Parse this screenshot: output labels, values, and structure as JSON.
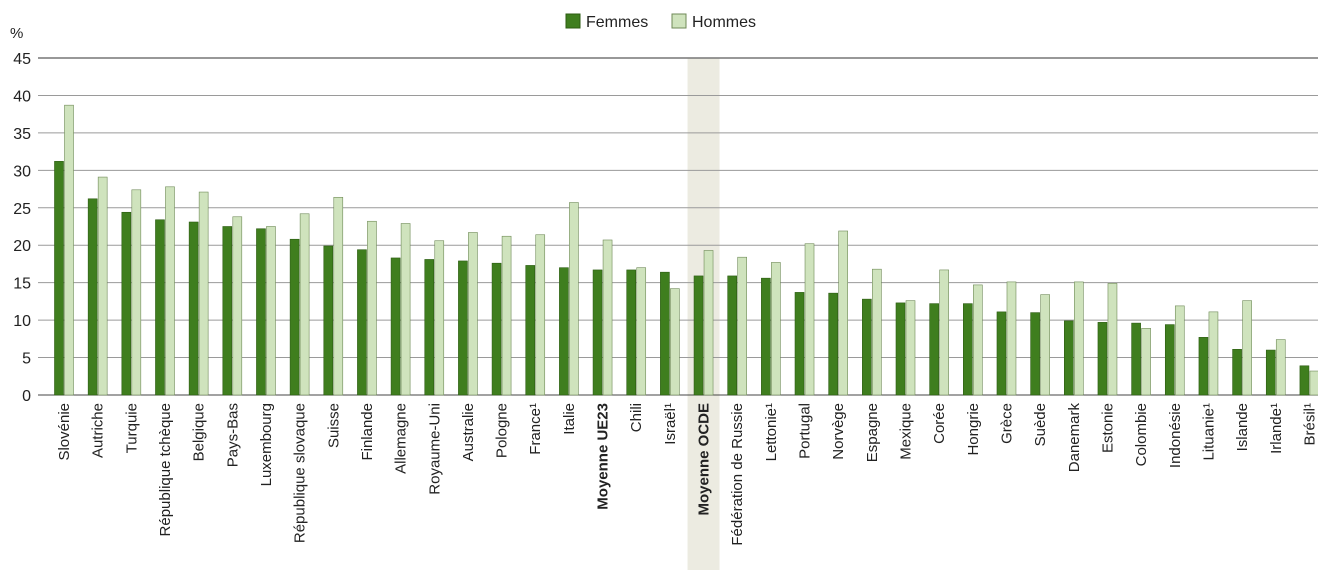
{
  "chart_data": {
    "type": "bar",
    "ylabel": "%",
    "ylim": [
      0,
      45
    ],
    "yticks": [
      0,
      5,
      10,
      15,
      20,
      25,
      30,
      35,
      40,
      45
    ],
    "grid": true,
    "legend_position": "top-center",
    "highlight_category": "Moyenne OCDE",
    "bold_categories": [
      "Moyenne UE23",
      "Moyenne OCDE"
    ],
    "categories": [
      "Slovénie",
      "Autriche",
      "Turquie",
      "République tchèque",
      "Belgique",
      "Pays-Bas",
      "Luxembourg",
      "République slovaque",
      "Suisse",
      "Finlande",
      "Allemagne",
      "Royaume-Uni",
      "Australie",
      "Pologne",
      "France¹",
      "Italie",
      "Moyenne UE23",
      "Chili",
      "Israël¹",
      "Moyenne OCDE",
      "Fédération de Russie",
      "Lettonie¹",
      "Portugal",
      "Norvège",
      "Espagne",
      "Mexique",
      "Corée",
      "Hongrie",
      "Grèce",
      "Suède",
      "Danemark",
      "Estonie",
      "Colombie",
      "Indonésie",
      "Lituanie¹",
      "Islande",
      "Irlande¹",
      "Brésil¹"
    ],
    "series": [
      {
        "name": "Femmes",
        "color": "#3f7e1e",
        "values": [
          31.2,
          26.2,
          24.4,
          23.4,
          23.1,
          22.5,
          22.2,
          20.8,
          19.9,
          19.4,
          18.3,
          18.1,
          17.9,
          17.6,
          17.3,
          17.0,
          16.7,
          16.7,
          16.4,
          15.9,
          15.9,
          15.6,
          13.7,
          13.6,
          12.8,
          12.3,
          12.2,
          12.2,
          11.1,
          11.0,
          9.9,
          9.7,
          9.6,
          9.4,
          7.7,
          6.1,
          6.0,
          3.9
        ]
      },
      {
        "name": "Hommes",
        "color": "#cfe3bd",
        "values": [
          38.7,
          29.1,
          27.4,
          27.8,
          27.1,
          23.8,
          22.5,
          24.2,
          26.4,
          23.2,
          22.9,
          20.6,
          21.7,
          21.2,
          21.4,
          25.7,
          20.7,
          17.0,
          14.2,
          19.3,
          18.4,
          17.7,
          20.2,
          21.9,
          16.8,
          12.6,
          16.7,
          14.7,
          15.1,
          13.4,
          15.1,
          14.9,
          8.9,
          11.9,
          11.1,
          12.6,
          7.4,
          3.2
        ]
      }
    ]
  }
}
